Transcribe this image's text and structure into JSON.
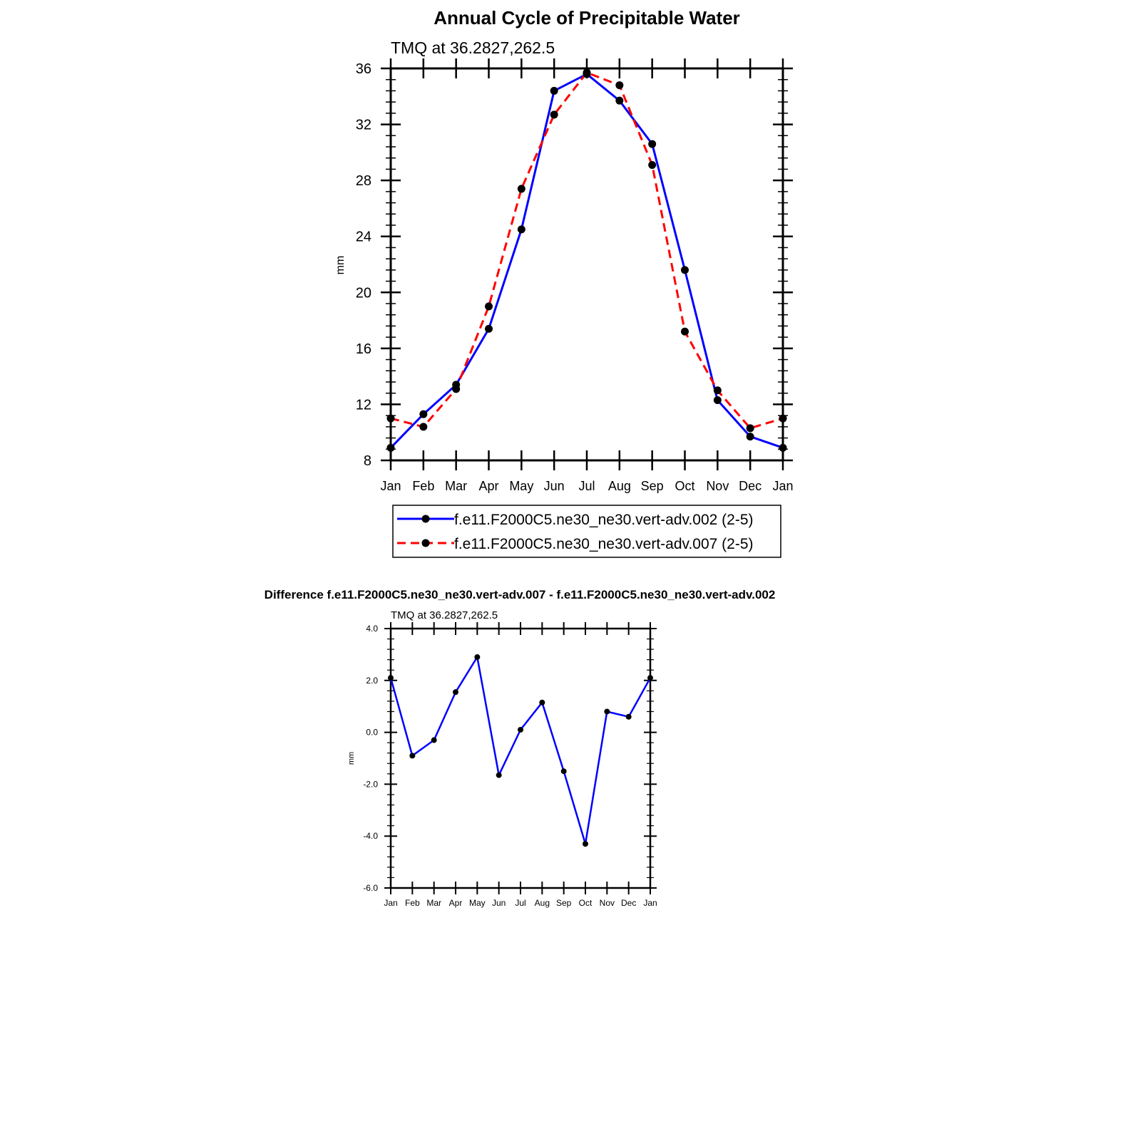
{
  "chart_data": [
    {
      "type": "line",
      "title": "Annual Cycle of Precipitable Water",
      "subtitle": "TMQ at 36.2827,262.5",
      "xlabel": "",
      "ylabel": "mm",
      "ylim": [
        8,
        36
      ],
      "yticks": [
        "8",
        "12",
        "16",
        "20",
        "24",
        "28",
        "32",
        "36"
      ],
      "categories": [
        "Jan",
        "Feb",
        "Mar",
        "Apr",
        "May",
        "Jun",
        "Jul",
        "Aug",
        "Sep",
        "Oct",
        "Nov",
        "Dec",
        "Jan"
      ],
      "series": [
        {
          "name": "f.e11.F2000C5.ne30_ne30.vert-adv.002 (2-5)",
          "color": "#0000ff",
          "dash": "solid",
          "values": [
            8.9,
            11.3,
            13.4,
            17.4,
            24.5,
            34.4,
            35.6,
            33.7,
            30.6,
            21.6,
            12.3,
            9.7,
            8.9
          ]
        },
        {
          "name": "f.e11.F2000C5.ne30_ne30.vert-adv.007 (2-5)",
          "color": "#ff0000",
          "dash": "dashed",
          "values": [
            11.0,
            10.4,
            13.1,
            19.0,
            27.4,
            32.7,
            35.7,
            34.8,
            29.1,
            17.2,
            13.0,
            10.3,
            11.0
          ]
        }
      ]
    },
    {
      "type": "line",
      "title": "Difference f.e11.F2000C5.ne30_ne30.vert-adv.007 - f.e11.F2000C5.ne30_ne30.vert-adv.002",
      "subtitle": "TMQ at 36.2827,262.5",
      "xlabel": "",
      "ylabel": "mm",
      "ylim": [
        -6,
        4
      ],
      "yticks": [
        "-6.0",
        "-4.0",
        "-2.0",
        "0.0",
        "2.0",
        "4.0"
      ],
      "categories": [
        "Jan",
        "Feb",
        "Mar",
        "Apr",
        "May",
        "Jun",
        "Jul",
        "Aug",
        "Sep",
        "Oct",
        "Nov",
        "Dec",
        "Jan"
      ],
      "series": [
        {
          "name": "Difference",
          "color": "#0000ff",
          "dash": "solid",
          "values": [
            2.1,
            -0.9,
            -0.3,
            1.55,
            2.9,
            -1.65,
            0.1,
            1.15,
            -1.5,
            -4.3,
            0.8,
            0.6,
            2.1
          ]
        }
      ]
    }
  ]
}
